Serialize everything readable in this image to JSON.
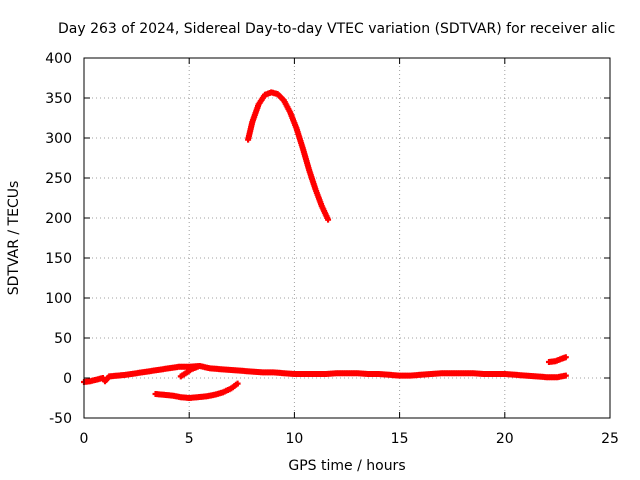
{
  "chart_data": {
    "type": "scatter",
    "title": "Day 263 of 2024, Sidereal Day-to-day VTEC variation (SDTVAR) for receiver alic",
    "xlabel": "GPS time / hours",
    "ylabel": "SDTVAR / TECUs",
    "xlim": [
      0,
      25
    ],
    "ylim": [
      -50,
      400
    ],
    "xticks": [
      0,
      5,
      10,
      15,
      20,
      25
    ],
    "yticks": [
      -50,
      0,
      50,
      100,
      150,
      200,
      250,
      300,
      350,
      400
    ],
    "grid": true,
    "marker_color": "#ff0000",
    "series": [
      {
        "points": [
          [
            7.8,
            298
          ],
          [
            8.0,
            320
          ],
          [
            8.3,
            342
          ],
          [
            8.6,
            354
          ],
          [
            8.9,
            357
          ],
          [
            9.2,
            355
          ],
          [
            9.5,
            347
          ],
          [
            9.8,
            332
          ],
          [
            10.1,
            312
          ],
          [
            10.4,
            287
          ],
          [
            10.7,
            260
          ],
          [
            11.0,
            236
          ],
          [
            11.3,
            215
          ],
          [
            11.6,
            198
          ]
        ]
      },
      {
        "points": [
          [
            0.0,
            -5
          ],
          [
            0.3,
            -4
          ],
          [
            0.6,
            -2
          ],
          [
            0.9,
            0
          ],
          [
            1.0,
            -4
          ],
          [
            1.2,
            2
          ],
          [
            1.6,
            3
          ],
          [
            2.0,
            4
          ],
          [
            2.5,
            6
          ],
          [
            3.0,
            8
          ],
          [
            3.5,
            10
          ],
          [
            4.0,
            12
          ],
          [
            4.5,
            14
          ],
          [
            5.0,
            14
          ],
          [
            5.5,
            15
          ],
          [
            6.0,
            12
          ],
          [
            6.5,
            11
          ],
          [
            7.0,
            10
          ],
          [
            7.5,
            9
          ],
          [
            8.0,
            8
          ],
          [
            8.5,
            7
          ],
          [
            9.0,
            7
          ],
          [
            9.5,
            6
          ],
          [
            10.0,
            5
          ],
          [
            10.5,
            5
          ],
          [
            11.0,
            5
          ],
          [
            11.5,
            5
          ],
          [
            12.0,
            6
          ],
          [
            12.5,
            6
          ],
          [
            13.0,
            6
          ],
          [
            13.5,
            5
          ],
          [
            14.0,
            5
          ],
          [
            14.5,
            4
          ],
          [
            15.0,
            3
          ],
          [
            15.5,
            3
          ],
          [
            16.0,
            4
          ],
          [
            16.5,
            5
          ],
          [
            17.0,
            6
          ],
          [
            17.5,
            6
          ],
          [
            18.0,
            6
          ],
          [
            18.5,
            6
          ],
          [
            19.0,
            5
          ],
          [
            19.5,
            5
          ],
          [
            20.0,
            5
          ],
          [
            20.5,
            4
          ],
          [
            21.0,
            3
          ],
          [
            21.5,
            2
          ],
          [
            22.0,
            1
          ],
          [
            22.5,
            1
          ],
          [
            22.9,
            3
          ]
        ]
      },
      {
        "points": [
          [
            3.4,
            -20
          ],
          [
            3.8,
            -21
          ],
          [
            4.2,
            -22
          ],
          [
            4.6,
            -24
          ],
          [
            5.0,
            -25
          ],
          [
            5.4,
            -24
          ],
          [
            5.8,
            -23
          ],
          [
            6.2,
            -21
          ],
          [
            6.6,
            -18
          ],
          [
            7.0,
            -13
          ],
          [
            7.3,
            -7
          ]
        ]
      },
      {
        "points": [
          [
            4.6,
            2
          ],
          [
            4.9,
            7
          ],
          [
            5.1,
            11
          ],
          [
            5.4,
            14
          ]
        ]
      },
      {
        "points": [
          [
            22.1,
            20
          ],
          [
            22.4,
            21
          ],
          [
            22.7,
            24
          ],
          [
            22.9,
            26
          ]
        ]
      }
    ]
  }
}
